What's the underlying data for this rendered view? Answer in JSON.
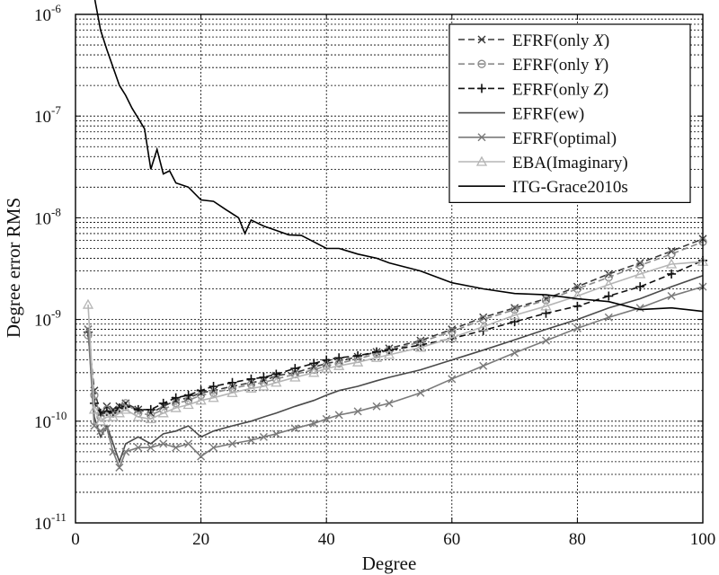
{
  "chart_data": {
    "type": "line",
    "title": "",
    "xlabel": "Degree",
    "ylabel": "Degree error RMS",
    "xscale": "linear",
    "yscale": "log",
    "xlim": [
      0,
      100
    ],
    "ylim": [
      1e-11,
      1e-06
    ],
    "xticks": [
      0,
      20,
      40,
      60,
      80,
      100
    ],
    "xtick_labels": [
      "0",
      "20",
      "40",
      "60",
      "80",
      "100"
    ],
    "ytick_labels": [
      {
        "base": "10",
        "exp": "-11"
      },
      {
        "base": "10",
        "exp": "-10"
      },
      {
        "base": "10",
        "exp": "-9"
      },
      {
        "base": "10",
        "exp": "-8"
      },
      {
        "base": "10",
        "exp": "-7"
      },
      {
        "base": "10",
        "exp": "-6"
      }
    ],
    "grid": true,
    "legend_position": "top-right",
    "series": [
      {
        "name": "EFRF(only X)",
        "legend": [
          "EFRF(only ",
          "X",
          ")"
        ],
        "color": "#3a3a3a",
        "dash": "dashed",
        "marker": "x",
        "x": [
          2,
          3,
          4,
          5,
          6,
          7,
          8,
          10,
          12,
          14,
          16,
          18,
          20,
          22,
          25,
          28,
          30,
          32,
          35,
          38,
          40,
          42,
          45,
          48,
          50,
          55,
          60,
          65,
          70,
          75,
          80,
          85,
          90,
          95,
          100
        ],
        "y": [
          8e-10,
          2e-10,
          1.2e-10,
          1.4e-10,
          1.3e-10,
          1.4e-10,
          1.5e-10,
          1.3e-10,
          1.2e-10,
          1.4e-10,
          1.6e-10,
          1.7e-10,
          1.9e-10,
          2e-10,
          2.2e-10,
          2.4e-10,
          2.5e-10,
          2.8e-10,
          3e-10,
          3.4e-10,
          3.7e-10,
          3.9e-10,
          4.3e-10,
          4.8e-10,
          5.2e-10,
          6.2e-10,
          8e-10,
          1.05e-09,
          1.3e-09,
          1.6e-09,
          2.1e-09,
          2.8e-09,
          3.6e-09,
          4.7e-09,
          6.2e-09
        ]
      },
      {
        "name": "EFRF(only Y)",
        "legend": [
          "EFRF(only ",
          "Y",
          ")"
        ],
        "color": "#8a8a8a",
        "dash": "dashed",
        "marker": "o",
        "x": [
          2,
          3,
          4,
          5,
          6,
          7,
          8,
          10,
          12,
          14,
          16,
          18,
          20,
          22,
          25,
          28,
          30,
          32,
          35,
          38,
          40,
          42,
          45,
          48,
          50,
          55,
          60,
          65,
          70,
          75,
          80,
          85,
          90,
          95,
          100
        ],
        "y": [
          7e-10,
          1.8e-10,
          1.1e-10,
          1.3e-10,
          1.2e-10,
          1.3e-10,
          1.5e-10,
          1.2e-10,
          1.15e-10,
          1.3e-10,
          1.5e-10,
          1.6e-10,
          1.8e-10,
          1.9e-10,
          2.1e-10,
          2.3e-10,
          2.4e-10,
          2.6e-10,
          2.9e-10,
          3.2e-10,
          3.5e-10,
          3.7e-10,
          4.1e-10,
          4.6e-10,
          5e-10,
          6e-10,
          7.6e-10,
          1e-09,
          1.25e-09,
          1.55e-09,
          2e-09,
          2.6e-09,
          3.4e-09,
          4.4e-09,
          5.8e-09
        ]
      },
      {
        "name": "EFRF(only Z)",
        "legend": [
          "EFRF(only ",
          "Z",
          ")"
        ],
        "color": "#111111",
        "dash": "dashed",
        "marker": "+",
        "x": [
          2,
          3,
          4,
          5,
          6,
          7,
          8,
          10,
          12,
          14,
          16,
          18,
          20,
          22,
          25,
          28,
          30,
          32,
          35,
          38,
          40,
          42,
          45,
          48,
          50,
          55,
          60,
          65,
          70,
          75,
          80,
          85,
          90,
          95,
          100
        ],
        "y": [
          7.5e-10,
          1.5e-10,
          1.2e-10,
          1.25e-10,
          1.2e-10,
          1.35e-10,
          1.4e-10,
          1.3e-10,
          1.3e-10,
          1.5e-10,
          1.7e-10,
          1.8e-10,
          2e-10,
          2.2e-10,
          2.4e-10,
          2.6e-10,
          2.7e-10,
          2.9e-10,
          3.3e-10,
          3.7e-10,
          4e-10,
          4.2e-10,
          4.4e-10,
          4.8e-10,
          5e-10,
          5.6e-10,
          6.5e-10,
          7.8e-10,
          9.5e-10,
          1.15e-09,
          1.35e-09,
          1.7e-09,
          2.1e-09,
          2.8e-09,
          3.8e-09
        ]
      },
      {
        "name": "EFRF(ew)",
        "legend": [
          "EFRF(ew)",
          "",
          ""
        ],
        "color": "#4a4a4a",
        "dash": "solid",
        "marker": "none",
        "x": [
          2,
          3,
          4,
          5,
          6,
          7,
          8,
          10,
          12,
          14,
          16,
          18,
          20,
          22,
          25,
          28,
          30,
          32,
          35,
          38,
          40,
          42,
          45,
          48,
          50,
          55,
          60,
          65,
          70,
          75,
          80,
          85,
          90,
          95,
          100
        ],
        "y": [
          8e-10,
          1.1e-10,
          7e-11,
          9e-11,
          6e-11,
          4e-11,
          6e-11,
          7e-11,
          6e-11,
          7.5e-11,
          8e-11,
          9e-11,
          7e-11,
          8e-11,
          9e-11,
          1e-10,
          1.1e-10,
          1.2e-10,
          1.4e-10,
          1.6e-10,
          1.8e-10,
          2e-10,
          2.2e-10,
          2.5e-10,
          2.7e-10,
          3.2e-10,
          4e-10,
          5e-10,
          6.3e-10,
          8e-10,
          1e-09,
          1.3e-09,
          1.6e-09,
          2.1e-09,
          2.7e-09
        ]
      },
      {
        "name": "EFRF(optimal)",
        "legend": [
          "EFRF(optimal)",
          "",
          ""
        ],
        "color": "#7a7a7a",
        "dash": "solid",
        "marker": "x",
        "x": [
          2,
          3,
          4,
          5,
          6,
          7,
          8,
          10,
          12,
          14,
          16,
          18,
          20,
          22,
          25,
          28,
          30,
          32,
          35,
          38,
          40,
          42,
          45,
          48,
          50,
          55,
          60,
          65,
          70,
          75,
          80,
          85,
          90,
          95,
          100
        ],
        "y": [
          8e-10,
          9e-11,
          8e-11,
          8.5e-11,
          5e-11,
          3.5e-11,
          5e-11,
          5.5e-11,
          5.5e-11,
          6e-11,
          5.5e-11,
          6e-11,
          4.5e-11,
          5.5e-11,
          6e-11,
          6.5e-11,
          7e-11,
          7.5e-11,
          8.5e-11,
          9.5e-11,
          1.05e-10,
          1.15e-10,
          1.25e-10,
          1.4e-10,
          1.5e-10,
          1.9e-10,
          2.6e-10,
          3.5e-10,
          4.7e-10,
          6.2e-10,
          8.2e-10,
          1.05e-09,
          1.3e-09,
          1.7e-09,
          2.1e-09
        ]
      },
      {
        "name": "EBA(Imaginary)",
        "legend": [
          "EBA(Imaginary)",
          "",
          ""
        ],
        "color": "#b5b5b5",
        "dash": "solid",
        "marker": "triangle",
        "x": [
          2,
          3,
          4,
          5,
          6,
          7,
          8,
          10,
          12,
          14,
          16,
          18,
          20,
          22,
          25,
          28,
          30,
          32,
          35,
          38,
          40,
          42,
          45,
          48,
          50,
          55,
          60,
          65,
          70,
          75,
          80,
          85,
          90,
          95,
          100
        ],
        "y": [
          1.4e-09,
          1.3e-10,
          1e-10,
          1.1e-10,
          1.1e-10,
          1.2e-10,
          1.3e-10,
          1.1e-10,
          1.05e-10,
          1.2e-10,
          1.35e-10,
          1.45e-10,
          1.6e-10,
          1.7e-10,
          1.9e-10,
          2.1e-10,
          2.2e-10,
          2.4e-10,
          2.7e-10,
          3e-10,
          3.3e-10,
          3.5e-10,
          3.8e-10,
          4.2e-10,
          4.5e-10,
          5.3e-10,
          6.6e-10,
          8.5e-10,
          1.1e-09,
          1.35e-09,
          1.7e-09,
          2.2e-09,
          2.8e-09,
          3.5e-09,
          3.7e-09
        ]
      },
      {
        "name": "ITG-Grace2010s",
        "legend": [
          "ITG-Grace2010s",
          "",
          ""
        ],
        "color": "#000000",
        "dash": "solid",
        "marker": "none",
        "x": [
          3,
          4,
          5,
          6,
          7,
          8,
          9,
          10,
          11,
          12,
          13,
          14,
          15,
          16,
          18,
          20,
          22,
          24,
          26,
          27,
          28,
          30,
          32,
          34,
          36,
          38,
          40,
          42,
          45,
          48,
          50,
          55,
          60,
          65,
          70,
          75,
          80,
          85,
          90,
          95,
          100
        ],
        "y": [
          1.5e-06,
          7e-07,
          4.5e-07,
          3e-07,
          2e-07,
          1.6e-07,
          1.2e-07,
          9.5e-08,
          7.5e-08,
          3e-08,
          4.7e-08,
          2.7e-08,
          2.9e-08,
          2.2e-08,
          2e-08,
          1.5e-08,
          1.45e-08,
          1.2e-08,
          1e-08,
          7e-09,
          9.5e-09,
          8.3e-09,
          7.5e-09,
          6.8e-09,
          6.7e-09,
          5.8e-09,
          5e-09,
          5e-09,
          4.4e-09,
          4e-09,
          3.6e-09,
          3e-09,
          2.3e-09,
          2e-09,
          1.8e-09,
          1.75e-09,
          1.6e-09,
          1.5e-09,
          1.25e-09,
          1.3e-09,
          1.2e-09
        ]
      }
    ]
  }
}
